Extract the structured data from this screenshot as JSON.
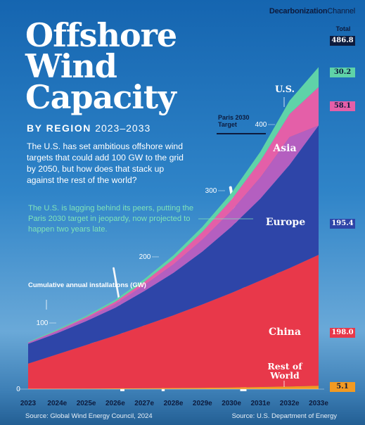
{
  "brand": {
    "bold": "Decarbonization",
    "light": "Channel"
  },
  "title": "Offshore Wind Capacity",
  "subtitle": {
    "lead": "BY REGION",
    "years": "2023–2033"
  },
  "intro": "The U.S. has set ambitious offshore wind targets that could add 100 GW to the grid by 2050, but how does that stack up against the rest of the world?",
  "note": "The U.S. is lagging behind its peers, putting the Paris 2030 target in jeopardy, now projected to happen two years late.",
  "annotations": {
    "cumulative": "Cumulative annual installations (GW)",
    "paris": "Paris 2030 Target"
  },
  "sources": {
    "left": "Source: Global Wind Energy Council, 2024",
    "right": "Source: U.S. Department of Energy"
  },
  "totals": {
    "header": "Total",
    "total": "486.8",
    "other": "30.2",
    "us": "58.1",
    "europe": "195.4",
    "china": "198.0",
    "rest": "5.1"
  },
  "colors": {
    "china": "#e8384a",
    "europe": "#2e45a8",
    "asia": "#b45fc0",
    "us": "#e45fa8",
    "other": "#5fd3a8",
    "rest": "#f29a22",
    "navy": "#0d1b3d"
  },
  "chart_data": {
    "type": "area",
    "stacked": true,
    "categories": [
      "2023",
      "2024e",
      "2025e",
      "2026e",
      "2027e",
      "2028e",
      "2029e",
      "2030e",
      "2031e",
      "2032e",
      "2033e"
    ],
    "series": [
      {
        "name": "Rest of World",
        "key": "rest",
        "values": [
          0.5,
          0.6,
          0.8,
          1.0,
          1.3,
          1.6,
          2.0,
          2.5,
          3.2,
          4.0,
          5.1
        ]
      },
      {
        "name": "China",
        "key": "china",
        "values": [
          38,
          52,
          66,
          80,
          95,
          110,
          126,
          143,
          161,
          179,
          198
        ]
      },
      {
        "name": "Europe",
        "key": "europe",
        "values": [
          30,
          32,
          36,
          42,
          52,
          64,
          80,
          100,
          124,
          156,
          195.4
        ]
      },
      {
        "name": "Asia",
        "key": "asia",
        "values": [
          2,
          3,
          4,
          6,
          9,
          13,
          18,
          24,
          32,
          42,
          0
        ]
      },
      {
        "name": "U.S.",
        "key": "us",
        "values": [
          0.1,
          1,
          2,
          3,
          5,
          8,
          12,
          17,
          25,
          35,
          58.1
        ]
      },
      {
        "name": "",
        "key": "other",
        "values": [
          1,
          1.5,
          2,
          3,
          4,
          5.5,
          7.5,
          10,
          14,
          20,
          30.2
        ]
      }
    ],
    "region_labels": {
      "us": "U.S.",
      "asia": "Asia",
      "europe": "Europe",
      "china": "China",
      "rest": "Rest of World"
    },
    "y_ticks": [
      0,
      100,
      200,
      300,
      400
    ],
    "ylim": [
      0,
      490
    ],
    "paris_target": 400
  }
}
